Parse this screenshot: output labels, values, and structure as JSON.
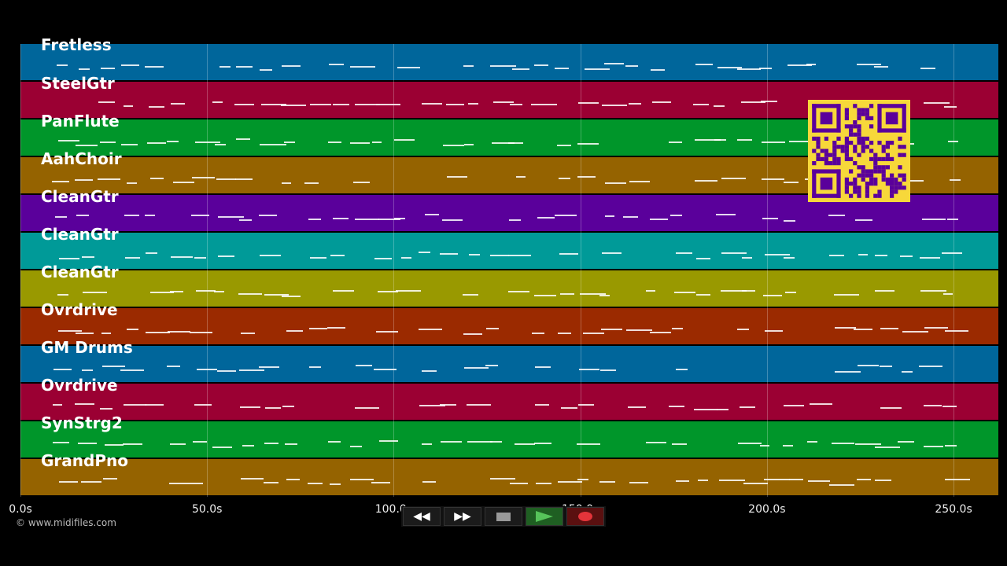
{
  "tracks": [
    {
      "name": "Fretless",
      "color": "#00669b"
    },
    {
      "name": "SteelGtr",
      "color": "#9b0033"
    },
    {
      "name": "PanFlute",
      "color": "#00962a"
    },
    {
      "name": "AahChoir",
      "color": "#956300"
    },
    {
      "name": "CleanGtr",
      "color": "#5a009b"
    },
    {
      "name": "CleanGtr",
      "color": "#009a98"
    },
    {
      "name": "CleanGtr",
      "color": "#999900"
    },
    {
      "name": "Ovrdrive",
      "color": "#9b2a00"
    },
    {
      "name": "GM Drums",
      "color": "#00669b"
    },
    {
      "name": "Ovrdrive",
      "color": "#9b0033"
    },
    {
      "name": "SynStrg2",
      "color": "#00962a"
    },
    {
      "name": "GrandPno",
      "color": "#956300"
    }
  ],
  "timeline": {
    "ticks": [
      "0.0s",
      "50.0s",
      "100.0s",
      "150.0s",
      "200.0s",
      "250.0s"
    ],
    "tick_seconds": [
      0,
      50,
      100,
      150,
      200,
      250
    ],
    "max_seconds": 262
  },
  "copyright": "© www.midifiles.com",
  "transport": {
    "rewind_icon": "rewind-icon",
    "fast_forward_icon": "fast-forward-icon",
    "stop_icon": "stop-icon",
    "play_icon": "play-icon",
    "record_icon": "record-icon"
  },
  "qr_color": "#5a009b"
}
